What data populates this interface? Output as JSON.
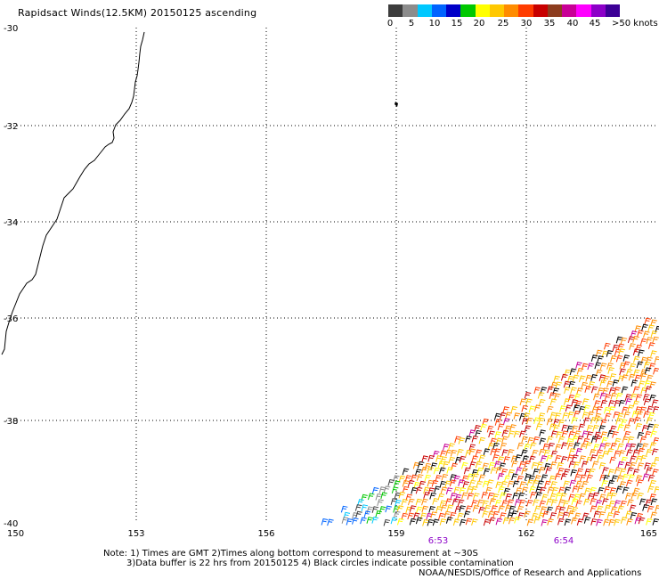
{
  "title": "Rapidsact Winds(12.5KM) 20150125 ascending",
  "legend": {
    "colors": [
      "#3c3c3c",
      "#8c8c8c",
      "#00c8ff",
      "#0064ff",
      "#0000c8",
      "#00c800",
      "#ffff00",
      "#ffc800",
      "#ff8c00",
      "#ff3c00",
      "#c80000",
      "#8c3c1e",
      "#c80096",
      "#ff00ff",
      "#8c00c8",
      "#3c0096"
    ],
    "labels": [
      "0",
      "5",
      "10",
      "15",
      "20",
      "25",
      "30",
      "35",
      "40",
      "45",
      ">50 knots"
    ]
  },
  "map": {
    "lon_labels": [
      "150",
      "153",
      "156",
      "159",
      "162",
      "165"
    ],
    "lat_labels": [
      "-30",
      "-32",
      "-34",
      "-36",
      "-38",
      "-40"
    ],
    "time_labels": [
      "6:53",
      "6:54"
    ],
    "time_color": "#8c00c8"
  },
  "notes": {
    "line1": "Note: 1) Times are GMT 2)Times along bottom correspond to measurement at ~30S",
    "line2": "3)Data buffer is 22 hrs from 20150125 4) Black circles indicate possible contamination",
    "line3": "NOAA/NESDIS/Office of Research and Applications"
  }
}
